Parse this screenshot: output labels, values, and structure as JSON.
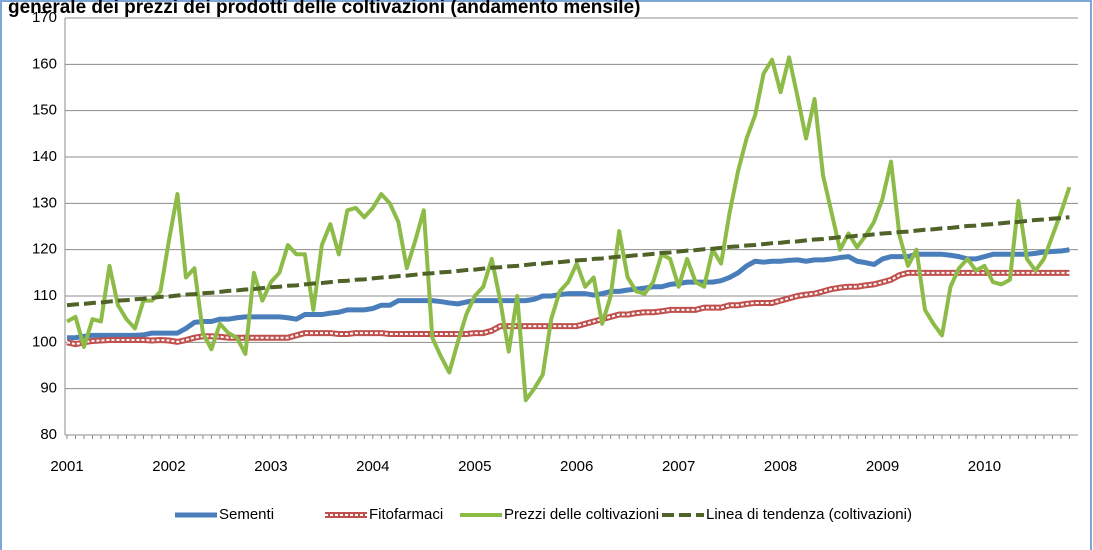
{
  "chart_data": {
    "type": "line",
    "title": "generale dei prezzi dei prodotti delle coltivazioni (andamento mensile)",
    "categories": [
      "2001",
      null,
      null,
      null,
      null,
      null,
      null,
      null,
      null,
      null,
      null,
      null,
      "2002",
      null,
      null,
      null,
      null,
      null,
      null,
      null,
      null,
      null,
      null,
      null,
      "2003",
      null,
      null,
      null,
      null,
      null,
      null,
      null,
      null,
      null,
      null,
      null,
      "2004",
      null,
      null,
      null,
      null,
      null,
      null,
      null,
      null,
      null,
      null,
      null,
      "2005",
      null,
      null,
      null,
      null,
      null,
      null,
      null,
      null,
      null,
      null,
      null,
      "2006",
      null,
      null,
      null,
      null,
      null,
      null,
      null,
      null,
      null,
      null,
      null,
      "2007",
      null,
      null,
      null,
      null,
      null,
      null,
      null,
      null,
      null,
      null,
      null,
      "2008",
      null,
      null,
      null,
      null,
      null,
      null,
      null,
      null,
      null,
      null,
      null,
      "2009",
      null,
      null,
      null,
      null,
      null,
      null,
      null,
      null,
      null,
      null,
      null,
      "2010",
      null,
      null,
      null,
      null,
      null,
      null,
      null,
      null,
      null,
      null
    ],
    "ylim": [
      80,
      170
    ],
    "yticks": [
      80,
      90,
      100,
      110,
      120,
      130,
      140,
      150,
      160,
      170
    ],
    "grid": true,
    "series": [
      {
        "name": "Sementi",
        "color": "#4a7ebb",
        "style": "solid",
        "values": [
          101,
          101,
          101.3,
          101.5,
          101.5,
          101.5,
          101.5,
          101.5,
          101.5,
          101.6,
          102,
          102,
          102,
          102,
          103,
          104.3,
          104.5,
          104.5,
          105,
          105,
          105.3,
          105.5,
          105.5,
          105.5,
          105.5,
          105.5,
          105.3,
          105,
          106,
          106,
          106,
          106.3,
          106.5,
          107,
          107,
          107,
          107.3,
          108,
          108,
          109,
          109,
          109,
          109,
          109,
          108.8,
          108.5,
          108.3,
          108.7,
          109,
          109,
          109,
          109,
          109,
          109,
          109,
          109.3,
          110,
          110,
          110.3,
          110.5,
          110.5,
          110.5,
          110.2,
          110.5,
          111,
          111,
          111.3,
          111.5,
          111.7,
          112,
          112,
          112.5,
          112.7,
          113,
          113,
          113,
          113,
          113.3,
          114,
          115,
          116.5,
          117.5,
          117.3,
          117.5,
          117.5,
          117.7,
          117.8,
          117.5,
          117.8,
          117.8,
          118,
          118.3,
          118.5,
          117.5,
          117.2,
          116.8,
          118,
          118.5,
          118.5,
          118.5,
          119,
          119,
          119,
          119,
          118.8,
          118.5,
          118,
          118,
          118.5,
          119,
          119,
          119,
          119,
          119,
          119.2,
          119.5,
          119.6,
          119.7,
          120
        ]
      },
      {
        "name": "Fitofarmaci",
        "color": "#c0504d",
        "style": "dotted",
        "values": [
          100,
          99.6,
          100,
          100.3,
          100.4,
          100.5,
          100.5,
          100.5,
          100.5,
          100.5,
          100.4,
          100.5,
          100.4,
          100.1,
          100.5,
          101,
          101.3,
          101.3,
          101.2,
          101,
          101,
          101,
          101,
          101,
          101,
          101,
          101,
          101.5,
          102,
          102,
          102,
          102,
          101.8,
          101.8,
          102,
          102,
          102,
          102,
          101.8,
          101.8,
          101.8,
          101.8,
          101.8,
          101.8,
          101.8,
          101.8,
          101.8,
          101.8,
          102,
          102,
          102.5,
          103.5,
          103.5,
          103.5,
          103.5,
          103.5,
          103.5,
          103.5,
          103.5,
          103.5,
          103.5,
          104,
          104.5,
          105,
          105.5,
          106,
          106,
          106.3,
          106.5,
          106.5,
          106.7,
          107,
          107,
          107,
          107,
          107.5,
          107.5,
          107.5,
          108,
          108,
          108.3,
          108.5,
          108.5,
          108.5,
          109,
          109.5,
          110,
          110.3,
          110.5,
          111,
          111.5,
          111.8,
          112,
          112,
          112.3,
          112.5,
          113,
          113.5,
          114.5,
          115,
          115,
          115,
          115,
          115,
          115,
          115,
          115,
          115,
          115,
          115,
          115,
          115,
          115,
          115,
          115,
          115,
          115,
          115,
          115
        ]
      },
      {
        "name": "Prezzi delle coltivazioni",
        "color": "#8dbb48",
        "style": "solid",
        "values": [
          104.5,
          105.5,
          99,
          105,
          104.5,
          116.5,
          108,
          105,
          103,
          109,
          109,
          111,
          122,
          132,
          114,
          116,
          102,
          98.5,
          104,
          102,
          101,
          97.5,
          115,
          109,
          113,
          115,
          121,
          119,
          119,
          107,
          121,
          125.5,
          119,
          128.5,
          129,
          127,
          129,
          132,
          130,
          126,
          116,
          122,
          128.5,
          101,
          97,
          93.5,
          100,
          106,
          110,
          112,
          118,
          109,
          98,
          110,
          87.5,
          90,
          93,
          105,
          111,
          113,
          117,
          112,
          114,
          104,
          110,
          124,
          114,
          111,
          110.5,
          113,
          119,
          118,
          112,
          118,
          113,
          112,
          120,
          117,
          128,
          137,
          144,
          149,
          158,
          161,
          154,
          161.5,
          153,
          144,
          152.5,
          136,
          128,
          120,
          123.5,
          120.5,
          123,
          126,
          131,
          139,
          123,
          116.5,
          120,
          107,
          104,
          101.5,
          112,
          116,
          118,
          115.5,
          116.5,
          113,
          112.5,
          113.5,
          130.5,
          118,
          115.5,
          118,
          123,
          128,
          133.5
        ]
      },
      {
        "name": "Linea di tendenza (coltivazioni)",
        "color": "#4f6228",
        "style": "dashed",
        "values": [
          108.0,
          108.2,
          108.3,
          108.5,
          108.6,
          108.8,
          109.0,
          109.1,
          109.3,
          109.4,
          109.6,
          109.8,
          109.9,
          110.1,
          110.3,
          110.4,
          110.6,
          110.7,
          110.9,
          111.1,
          111.2,
          111.4,
          111.5,
          111.7,
          111.9,
          112.0,
          112.2,
          112.3,
          112.5,
          112.7,
          112.8,
          113.0,
          113.2,
          113.3,
          113.5,
          113.6,
          113.8,
          114.0,
          114.1,
          114.3,
          114.4,
          114.6,
          114.8,
          114.9,
          115.1,
          115.2,
          115.4,
          115.6,
          115.7,
          115.9,
          116.1,
          116.2,
          116.4,
          116.5,
          116.7,
          116.9,
          117.0,
          117.2,
          117.3,
          117.5,
          117.7,
          117.8,
          118.0,
          118.1,
          118.3,
          118.5,
          118.6,
          118.8,
          118.9,
          119.1,
          119.3,
          119.4,
          119.6,
          119.8,
          119.9,
          120.1,
          120.2,
          120.4,
          120.6,
          120.7,
          120.9,
          121.0,
          121.2,
          121.4,
          121.5,
          121.7,
          121.8,
          122.0,
          122.2,
          122.3,
          122.5,
          122.7,
          122.8,
          123.0,
          123.1,
          123.3,
          123.5,
          123.6,
          123.8,
          123.9,
          124.1,
          124.3,
          124.4,
          124.6,
          124.7,
          124.9,
          125.1,
          125.2,
          125.4,
          125.5,
          125.7,
          125.9,
          126.0,
          126.2,
          126.4,
          126.5,
          126.7,
          126.8,
          127.0
        ]
      }
    ]
  }
}
